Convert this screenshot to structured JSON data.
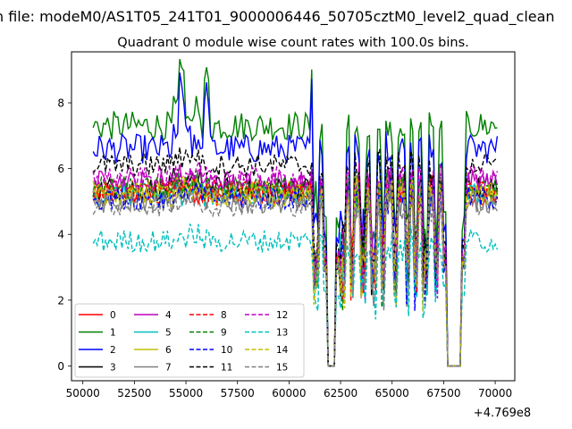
{
  "figure": {
    "suptitle": "n file: modeM0/AS1T05_241T01_9000006446_50705cztM0_level2_quad_clean",
    "title": "Quadrant 0 module wise count rates with 100.0s bins.",
    "x_offset_label": "+4.769e8"
  },
  "chart_data": {
    "type": "line",
    "title": "Quadrant 0 module wise count rates with 100.0s bins.",
    "xlabel": "",
    "ylabel": "",
    "xlim": [
      49450,
      70950
    ],
    "ylim": [
      -0.45,
      9.55
    ],
    "x_offset": 476900000,
    "x_ticks": [
      50000,
      52500,
      55000,
      57500,
      60000,
      62500,
      65000,
      67500,
      70000
    ],
    "x_tick_labels": [
      "50000",
      "52500",
      "55000",
      "57500",
      "60000",
      "62500",
      "65000",
      "67500",
      "70000"
    ],
    "y_ticks": [
      0,
      2,
      4,
      6,
      8
    ],
    "y_tick_labels": [
      "0",
      "2",
      "4",
      "6",
      "8"
    ],
    "grid": false,
    "legend_position": "lower-left",
    "legend_columns": 4,
    "bin_seconds": 100.0,
    "x_start": 50500,
    "x_end": 70100,
    "gaps": [
      [
        61900,
        62200
      ],
      [
        67700,
        68300
      ]
    ],
    "series": [
      {
        "name": "0",
        "color": "#ff0000",
        "dash": "solid",
        "base": 5.2
      },
      {
        "name": "1",
        "color": "#008000",
        "dash": "solid",
        "base": 7.3
      },
      {
        "name": "2",
        "color": "#0000ff",
        "dash": "solid",
        "base": 6.6
      },
      {
        "name": "3",
        "color": "#000000",
        "dash": "solid",
        "base": 5.4
      },
      {
        "name": "4",
        "color": "#bf00bf",
        "dash": "solid",
        "base": 5.6
      },
      {
        "name": "5",
        "color": "#00bfbf",
        "dash": "solid",
        "base": 5.2
      },
      {
        "name": "6",
        "color": "#bfbf00",
        "dash": "solid",
        "base": 5.3
      },
      {
        "name": "7",
        "color": "#808080",
        "dash": "solid",
        "base": 5.0
      },
      {
        "name": "8",
        "color": "#ff0000",
        "dash": "dashed",
        "base": 5.3
      },
      {
        "name": "9",
        "color": "#008000",
        "dash": "dashed",
        "base": 5.4
      },
      {
        "name": "10",
        "color": "#0000ff",
        "dash": "dashed",
        "base": 5.1
      },
      {
        "name": "11",
        "color": "#000000",
        "dash": "dashed",
        "base": 6.1
      },
      {
        "name": "12",
        "color": "#bf00bf",
        "dash": "dashed",
        "base": 5.7
      },
      {
        "name": "13",
        "color": "#00bfbf",
        "dash": "dashed",
        "base": 3.8
      },
      {
        "name": "14",
        "color": "#bfbf00",
        "dash": "dashed",
        "base": 5.2
      },
      {
        "name": "15",
        "color": "#808080",
        "dash": "dashed",
        "base": 4.9
      }
    ]
  }
}
